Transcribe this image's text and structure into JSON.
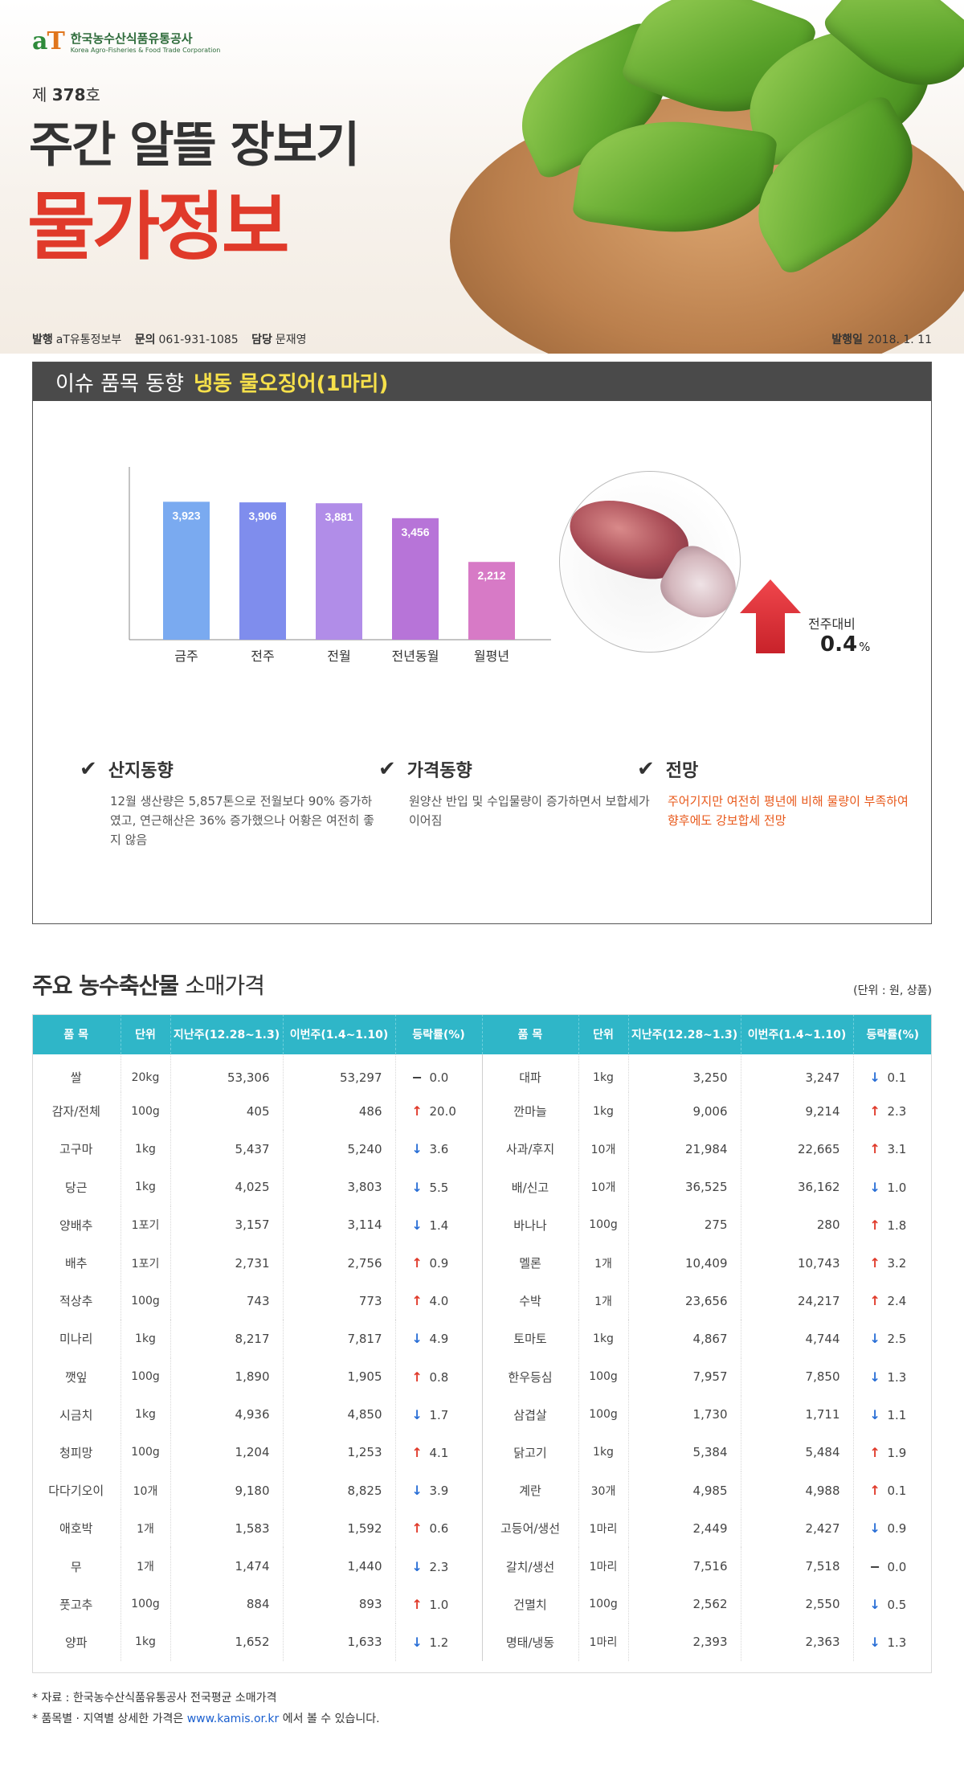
{
  "header": {
    "logo_mark_a": "a",
    "logo_mark_t": "T",
    "logo_ko": "한국농수산식품유통공사",
    "logo_en": "Korea Agro-Fisheries & Food Trade Corporation",
    "issue_prefix": "제",
    "issue_number": "378",
    "issue_suffix": "호",
    "title_line1": "주간 알뜰 장보기",
    "title_line2": "물가정보",
    "publisher_label": "발행",
    "publisher": "aT유통정보부",
    "contact_label": "문의",
    "contact": "061-931-1085",
    "manager_label": "담당",
    "manager": "문재영",
    "date_label": "발행일",
    "date": "2018. 1. 11"
  },
  "issue": {
    "head_prefix": "이슈 품목 동향",
    "head_item": "냉동 물오징어(1마리)",
    "wow_label": "전주대비",
    "wow_value": "0.4",
    "wow_unit": "%",
    "trends": [
      {
        "title": "산지동향",
        "body": "12월 생산량은 5,857톤으로 전월보다 90% 증가하였고, 연근해산은 36% 증가했으나 어황은 여전히 좋지 않음"
      },
      {
        "title": "가격동향",
        "body": "원양산 반입 및 수입물량이 증가하면서 보합세가 이어짐"
      },
      {
        "title": "전망",
        "body": "주어기지만 여전히 평년에 비해 물량이 부족하여 향후에도 강보합세 전망"
      }
    ],
    "colors": {
      "arrow": "#e8343a",
      "highlight": "#f6e04a",
      "outlook": "#e8581a"
    }
  },
  "chart_data": {
    "type": "bar",
    "categories": [
      "금주",
      "전주",
      "전월",
      "전년동월",
      "월평년"
    ],
    "values": [
      3923,
      3906,
      3881,
      3456,
      2212
    ],
    "value_labels": [
      "3,923",
      "3,906",
      "3,881",
      "3,456",
      "2,212"
    ],
    "colors": [
      "#7aaaf0",
      "#7f8ded",
      "#b18de8",
      "#b774d8",
      "#d77ac6"
    ],
    "title": "",
    "xlabel": "",
    "ylabel": "",
    "grid": false
  },
  "table": {
    "section_title_bold": "주요 농수축산물",
    "section_title_rest": "소매가격",
    "unit_note": "(단위 : 원, 상품)",
    "headers": [
      "품 목",
      "단위",
      "지난주(12.28~1.3)",
      "이번주(1.4~1.10)",
      "등락률(%)",
      "품 목",
      "단위",
      "지난주(12.28~1.3)",
      "이번주(1.4~1.10)",
      "등락률(%)"
    ],
    "rows": [
      {
        "l": [
          "쌀",
          "20kg",
          "53,306",
          "53,297",
          "flat",
          "0.0"
        ],
        "r": [
          "대파",
          "1kg",
          "3,250",
          "3,247",
          "down",
          "0.1"
        ]
      },
      {
        "l": [
          "감자/전체",
          "100g",
          "405",
          "486",
          "up",
          "20.0"
        ],
        "r": [
          "깐마늘",
          "1kg",
          "9,006",
          "9,214",
          "up",
          "2.3"
        ]
      },
      {
        "l": [
          "고구마",
          "1kg",
          "5,437",
          "5,240",
          "down",
          "3.6"
        ],
        "r": [
          "사과/후지",
          "10개",
          "21,984",
          "22,665",
          "up",
          "3.1"
        ]
      },
      {
        "l": [
          "당근",
          "1kg",
          "4,025",
          "3,803",
          "down",
          "5.5"
        ],
        "r": [
          "배/신고",
          "10개",
          "36,525",
          "36,162",
          "down",
          "1.0"
        ]
      },
      {
        "l": [
          "양배추",
          "1포기",
          "3,157",
          "3,114",
          "down",
          "1.4"
        ],
        "r": [
          "바나나",
          "100g",
          "275",
          "280",
          "up",
          "1.8"
        ]
      },
      {
        "l": [
          "배추",
          "1포기",
          "2,731",
          "2,756",
          "up",
          "0.9"
        ],
        "r": [
          "멜론",
          "1개",
          "10,409",
          "10,743",
          "up",
          "3.2"
        ]
      },
      {
        "l": [
          "적상추",
          "100g",
          "743",
          "773",
          "up",
          "4.0"
        ],
        "r": [
          "수박",
          "1개",
          "23,656",
          "24,217",
          "up",
          "2.4"
        ]
      },
      {
        "l": [
          "미나리",
          "1kg",
          "8,217",
          "7,817",
          "down",
          "4.9"
        ],
        "r": [
          "토마토",
          "1kg",
          "4,867",
          "4,744",
          "down",
          "2.5"
        ]
      },
      {
        "l": [
          "깻잎",
          "100g",
          "1,890",
          "1,905",
          "up",
          "0.8"
        ],
        "r": [
          "한우등심",
          "100g",
          "7,957",
          "7,850",
          "down",
          "1.3"
        ]
      },
      {
        "l": [
          "시금치",
          "1kg",
          "4,936",
          "4,850",
          "down",
          "1.7"
        ],
        "r": [
          "삼겹살",
          "100g",
          "1,730",
          "1,711",
          "down",
          "1.1"
        ]
      },
      {
        "l": [
          "청피망",
          "100g",
          "1,204",
          "1,253",
          "up",
          "4.1"
        ],
        "r": [
          "닭고기",
          "1kg",
          "5,384",
          "5,484",
          "up",
          "1.9"
        ]
      },
      {
        "l": [
          "다다기오이",
          "10개",
          "9,180",
          "8,825",
          "down",
          "3.9"
        ],
        "r": [
          "계란",
          "30개",
          "4,985",
          "4,988",
          "up",
          "0.1"
        ]
      },
      {
        "l": [
          "애호박",
          "1개",
          "1,583",
          "1,592",
          "up",
          "0.6"
        ],
        "r": [
          "고등어/생선",
          "1마리",
          "2,449",
          "2,427",
          "down",
          "0.9"
        ]
      },
      {
        "l": [
          "무",
          "1개",
          "1,474",
          "1,440",
          "down",
          "2.3"
        ],
        "r": [
          "갈치/생선",
          "1마리",
          "7,516",
          "7,518",
          "flat",
          "0.0"
        ]
      },
      {
        "l": [
          "풋고추",
          "100g",
          "884",
          "893",
          "up",
          "1.0"
        ],
        "r": [
          "건멸치",
          "100g",
          "2,562",
          "2,550",
          "down",
          "0.5"
        ]
      },
      {
        "l": [
          "양파",
          "1kg",
          "1,652",
          "1,633",
          "down",
          "1.2"
        ],
        "r": [
          "명태/냉동",
          "1마리",
          "2,393",
          "2,363",
          "down",
          "1.3"
        ]
      }
    ],
    "colors": {
      "header_bg": "#2fb6c8",
      "up": "#e03a2a",
      "down": "#2a6fd6"
    }
  },
  "footer": {
    "source": "* 자료 : 한국농수산식품유통공사 전국평균 소매가격",
    "detail_prefix": "* 품목별 · 지역별 상세한 가격은",
    "detail_link": "www.kamis.or.kr",
    "detail_suffix": "에서 볼 수 있습니다."
  }
}
